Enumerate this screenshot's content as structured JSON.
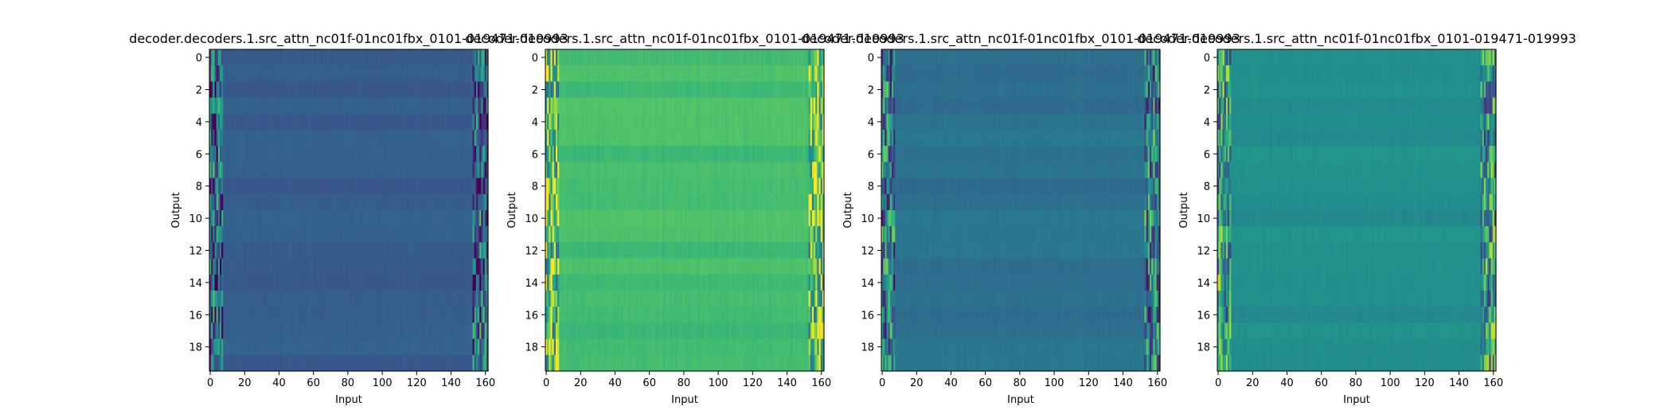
{
  "chart_data": [
    {
      "type": "heatmap",
      "title": "decoder.decoders.1.src_attn_nc01f-01nc01fbx_0101-019471-019993",
      "xlabel": "Input",
      "ylabel": "Output",
      "xlim": [
        0,
        162
      ],
      "ylim": [
        0,
        20
      ],
      "xticks": [
        "0",
        "20",
        "40",
        "60",
        "80",
        "100",
        "120",
        "140",
        "160"
      ],
      "yticks": [
        "0",
        "2",
        "4",
        "6",
        "8",
        "10",
        "12",
        "14",
        "16",
        "18"
      ],
      "colormap": "viridis",
      "base_level": 0.3
    },
    {
      "type": "heatmap",
      "title": "decoder.decoders.1.src_attn_nc01f-01nc01fbx_0101-019471-019993",
      "xlabel": "Input",
      "ylabel": "Output",
      "xlim": [
        0,
        162
      ],
      "ylim": [
        0,
        20
      ],
      "xticks": [
        "0",
        "20",
        "40",
        "60",
        "80",
        "100",
        "120",
        "140",
        "160"
      ],
      "yticks": [
        "0",
        "2",
        "4",
        "6",
        "8",
        "10",
        "12",
        "14",
        "16",
        "18"
      ],
      "colormap": "viridis",
      "base_level": 0.7
    },
    {
      "type": "heatmap",
      "title": "decoder.decoders.1.src_attn_nc01f-01nc01fbx_0101-019471-019993",
      "xlabel": "Input",
      "ylabel": "Output",
      "xlim": [
        0,
        162
      ],
      "ylim": [
        0,
        20
      ],
      "xticks": [
        "0",
        "20",
        "40",
        "60",
        "80",
        "100",
        "120",
        "140",
        "160"
      ],
      "yticks": [
        "0",
        "2",
        "4",
        "6",
        "8",
        "10",
        "12",
        "14",
        "16",
        "18"
      ],
      "colormap": "viridis",
      "base_level": 0.38
    },
    {
      "type": "heatmap",
      "title": "decoder.decoders.1.src_attn_nc01f-01nc01fbx_0101-019471-019993",
      "xlabel": "Input",
      "ylabel": "Output",
      "xlim": [
        0,
        162
      ],
      "ylim": [
        0,
        20
      ],
      "xticks": [
        "0",
        "20",
        "40",
        "60",
        "80",
        "100",
        "120",
        "140",
        "160"
      ],
      "yticks": [
        "0",
        "2",
        "4",
        "6",
        "8",
        "10",
        "12",
        "14",
        "16",
        "18"
      ],
      "colormap": "viridis",
      "base_level": 0.5
    }
  ]
}
